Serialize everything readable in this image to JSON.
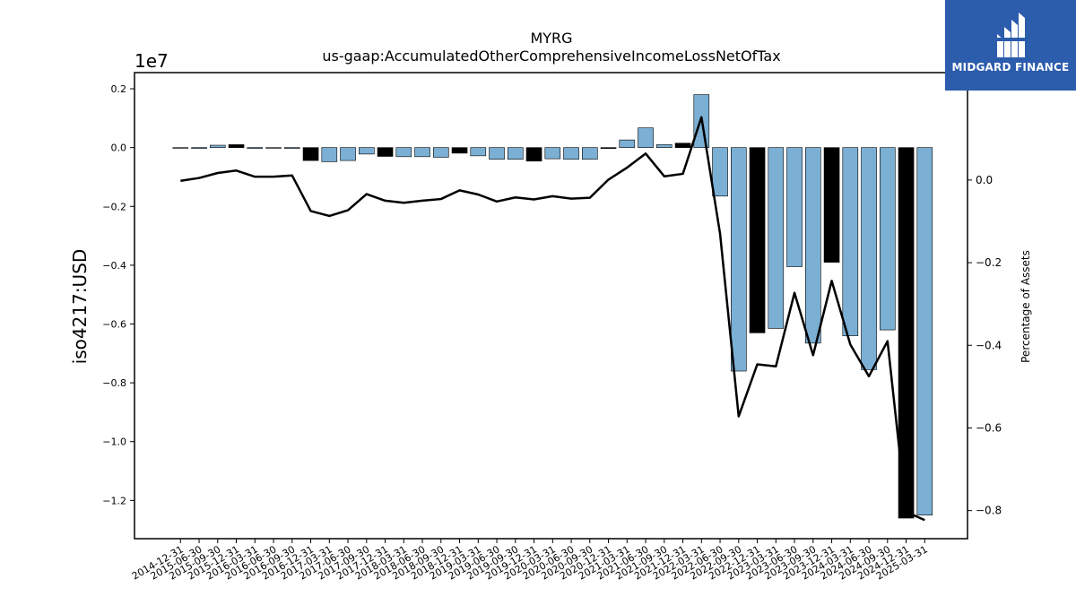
{
  "chart_data": {
    "type": "bar",
    "title": "MYRG",
    "subtitle": "us-gaap:AccumulatedOtherComprehensiveIncomeLossNetOfTax",
    "ylabel": "iso4217:USD",
    "y_offset_label": "1e7",
    "y2label": "Percentage of Assets",
    "ylim": [
      -13300000,
      2550000
    ],
    "y2lim": [
      -0.868,
      0.26
    ],
    "yticks": [
      0.2,
      0.0,
      -0.2,
      -0.4,
      -0.6,
      -0.8,
      -1.0,
      -1.2
    ],
    "ytick_labels": [
      "0.2",
      "0.0",
      "−0.2",
      "−0.4",
      "−0.6",
      "−0.8",
      "−1.0",
      "−1.2"
    ],
    "y2ticks": [
      0.0,
      -0.2,
      -0.4,
      -0.6,
      -0.8
    ],
    "y2tick_labels": [
      "0.0",
      "−0.2",
      "−0.4",
      "−0.6",
      "−0.8"
    ],
    "categories": [
      "2014-12-31",
      "2015-06-30",
      "2015-09-30",
      "2015-12-31",
      "2016-03-31",
      "2016-06-30",
      "2016-09-30",
      "2016-12-31",
      "2017-03-31",
      "2017-06-30",
      "2017-09-30",
      "2017-12-31",
      "2018-03-31",
      "2018-06-30",
      "2018-09-30",
      "2018-12-31",
      "2019-03-31",
      "2019-06-30",
      "2019-09-30",
      "2019-12-31",
      "2020-03-31",
      "2020-06-30",
      "2020-09-30",
      "2020-12-31",
      "2021-03-31",
      "2021-06-30",
      "2021-09-30",
      "2021-12-31",
      "2022-03-31",
      "2022-06-30",
      "2022-09-30",
      "2022-12-31",
      "2023-03-31",
      "2023-06-30",
      "2023-09-30",
      "2023-12-31",
      "2024-03-31",
      "2024-06-30",
      "2024-09-30",
      "2024-12-31",
      "2025-03-31"
    ],
    "values": [
      -20000,
      -30000,
      80000,
      100000,
      -30000,
      -20000,
      -30000,
      -440000,
      -480000,
      -440000,
      -220000,
      -300000,
      -310000,
      -310000,
      -330000,
      -190000,
      -280000,
      -400000,
      -400000,
      -460000,
      -380000,
      -400000,
      -400000,
      -30000,
      260000,
      670000,
      100000,
      150000,
      1800000,
      -1650000,
      -7600000,
      -6300000,
      -6150000,
      -4050000,
      -6650000,
      -3900000,
      -6400000,
      -7550000,
      -6200000,
      -12600000,
      -12500000
    ],
    "bar_highlight": [
      false,
      false,
      false,
      true,
      false,
      false,
      false,
      true,
      false,
      false,
      false,
      true,
      false,
      false,
      false,
      true,
      false,
      false,
      false,
      true,
      false,
      false,
      false,
      true,
      false,
      false,
      false,
      true,
      false,
      false,
      false,
      true,
      false,
      false,
      false,
      true,
      false,
      false,
      false,
      true,
      false
    ],
    "series": [
      {
        "name": "",
        "axis": "right",
        "values": [
          -0.002,
          0.005,
          0.017,
          0.023,
          0.008,
          0.008,
          0.011,
          -0.075,
          -0.087,
          -0.073,
          -0.034,
          -0.05,
          -0.055,
          -0.05,
          -0.046,
          -0.025,
          -0.035,
          -0.052,
          -0.042,
          -0.047,
          -0.039,
          -0.045,
          -0.043,
          0.001,
          0.03,
          0.064,
          0.009,
          0.015,
          0.152,
          -0.13,
          -0.572,
          -0.446,
          -0.451,
          -0.273,
          -0.424,
          -0.244,
          -0.398,
          -0.475,
          -0.39,
          -0.803,
          -0.823
        ]
      }
    ],
    "colors": {
      "bar": "#7bafd4",
      "bar_highlight": "#000000",
      "line": "#000000"
    },
    "grid": false
  },
  "logo": {
    "text": "MIDGARD FINANCE",
    "bg": "#2c5cac"
  }
}
